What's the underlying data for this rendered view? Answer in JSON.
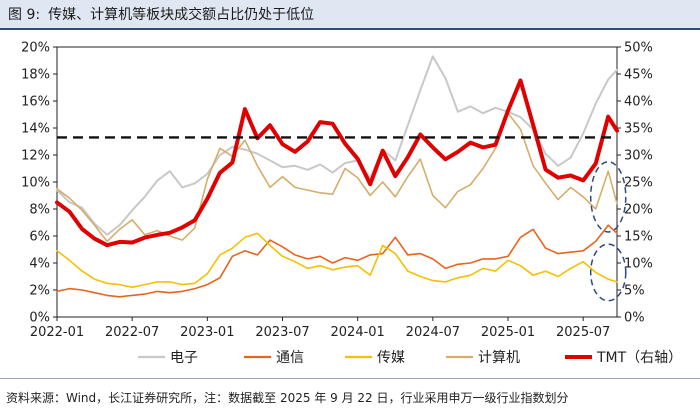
{
  "figure": {
    "label": "图 9:",
    "title": "传媒、计算机等板块成交额占比仍处于低位",
    "source": "资料来源：Wind，长江证券研究所，注：数据截至 2025 年 9 月 22 日，行业采用申万一级行业指数划分"
  },
  "chart_data": {
    "type": "line",
    "left_axis": {
      "min": 0,
      "max": 20,
      "step": 2,
      "ticks": [
        "0%",
        "2%",
        "4%",
        "6%",
        "8%",
        "10%",
        "12%",
        "14%",
        "16%",
        "18%",
        "20%"
      ]
    },
    "right_axis": {
      "min": 0,
      "max": 50,
      "step": 5,
      "ticks": [
        "0%",
        "5%",
        "10%",
        "15%",
        "20%",
        "25%",
        "30%",
        "35%",
        "40%",
        "45%",
        "50%"
      ]
    },
    "x_ticks": [
      "2022-01",
      "2022-07",
      "2023-01",
      "2023-07",
      "2024-01",
      "2024-07",
      "2025-01",
      "2025-07"
    ],
    "x_tick_months": [
      0,
      6,
      12,
      18,
      24,
      30,
      36,
      42
    ],
    "x_range_months": [
      0,
      44.7
    ],
    "reference_line": {
      "value_left_axis": 13.3,
      "style": "dashed"
    },
    "series": [
      {
        "name": "电子",
        "axis": "left",
        "color": "#c8c8c8",
        "width": 2,
        "points": [
          [
            0,
            9.4
          ],
          [
            1,
            8.5
          ],
          [
            2,
            8.1
          ],
          [
            3,
            6.9
          ],
          [
            4,
            6.1
          ],
          [
            5,
            6.8
          ],
          [
            6,
            7.9
          ],
          [
            7,
            8.9
          ],
          [
            8,
            10.1
          ],
          [
            9,
            10.8
          ],
          [
            10,
            9.6
          ],
          [
            11,
            9.9
          ],
          [
            12,
            10.6
          ],
          [
            13,
            12.0
          ],
          [
            14,
            12.6
          ],
          [
            15,
            12.4
          ],
          [
            16,
            12.1
          ],
          [
            17,
            11.6
          ],
          [
            18,
            11.1
          ],
          [
            19,
            11.2
          ],
          [
            20,
            10.9
          ],
          [
            21,
            11.3
          ],
          [
            22,
            10.7
          ],
          [
            23,
            11.4
          ],
          [
            24,
            11.6
          ],
          [
            25,
            10.3
          ],
          [
            26,
            12.4
          ],
          [
            27,
            11.6
          ],
          [
            28,
            14.2
          ],
          [
            29,
            16.8
          ],
          [
            30,
            19.3
          ],
          [
            31,
            17.7
          ],
          [
            32,
            15.2
          ],
          [
            33,
            15.6
          ],
          [
            34,
            15.1
          ],
          [
            35,
            15.5
          ],
          [
            36,
            15.2
          ],
          [
            37,
            14.8
          ],
          [
            38,
            13.9
          ],
          [
            39,
            12.1
          ],
          [
            40,
            11.2
          ],
          [
            41,
            11.8
          ],
          [
            42,
            13.6
          ],
          [
            43,
            15.8
          ],
          [
            44,
            17.6
          ],
          [
            44.7,
            18.3
          ]
        ]
      },
      {
        "name": "通信",
        "axis": "left",
        "color": "#e8641e",
        "width": 1.6,
        "points": [
          [
            0,
            1.9
          ],
          [
            1,
            2.1
          ],
          [
            2,
            2.0
          ],
          [
            3,
            1.8
          ],
          [
            4,
            1.6
          ],
          [
            5,
            1.5
          ],
          [
            6,
            1.6
          ],
          [
            7,
            1.7
          ],
          [
            8,
            1.9
          ],
          [
            9,
            1.8
          ],
          [
            10,
            1.9
          ],
          [
            11,
            2.1
          ],
          [
            12,
            2.4
          ],
          [
            13,
            2.9
          ],
          [
            14,
            4.5
          ],
          [
            15,
            4.9
          ],
          [
            16,
            4.6
          ],
          [
            17,
            5.7
          ],
          [
            18,
            5.2
          ],
          [
            19,
            4.6
          ],
          [
            20,
            4.3
          ],
          [
            21,
            4.5
          ],
          [
            22,
            4.0
          ],
          [
            23,
            4.4
          ],
          [
            24,
            4.2
          ],
          [
            25,
            4.6
          ],
          [
            26,
            4.7
          ],
          [
            27,
            5.9
          ],
          [
            28,
            4.6
          ],
          [
            29,
            4.7
          ],
          [
            30,
            4.3
          ],
          [
            31,
            3.6
          ],
          [
            32,
            3.9
          ],
          [
            33,
            4.0
          ],
          [
            34,
            4.3
          ],
          [
            35,
            4.3
          ],
          [
            36,
            4.5
          ],
          [
            37,
            5.9
          ],
          [
            38,
            6.5
          ],
          [
            39,
            5.1
          ],
          [
            40,
            4.7
          ],
          [
            41,
            4.8
          ],
          [
            42,
            4.9
          ],
          [
            43,
            5.6
          ],
          [
            44,
            6.8
          ],
          [
            44.7,
            6.2
          ]
        ]
      },
      {
        "name": "传媒",
        "axis": "left",
        "color": "#f5c000",
        "width": 1.6,
        "points": [
          [
            0,
            4.9
          ],
          [
            1,
            4.2
          ],
          [
            2,
            3.4
          ],
          [
            3,
            2.8
          ],
          [
            4,
            2.5
          ],
          [
            5,
            2.4
          ],
          [
            6,
            2.2
          ],
          [
            7,
            2.4
          ],
          [
            8,
            2.6
          ],
          [
            9,
            2.6
          ],
          [
            10,
            2.4
          ],
          [
            11,
            2.5
          ],
          [
            12,
            3.2
          ],
          [
            13,
            4.6
          ],
          [
            14,
            5.1
          ],
          [
            15,
            5.9
          ],
          [
            16,
            6.2
          ],
          [
            17,
            5.3
          ],
          [
            18,
            4.5
          ],
          [
            19,
            4.1
          ],
          [
            20,
            3.6
          ],
          [
            21,
            3.8
          ],
          [
            22,
            3.5
          ],
          [
            23,
            3.7
          ],
          [
            24,
            3.8
          ],
          [
            25,
            3.1
          ],
          [
            26,
            5.3
          ],
          [
            27,
            4.7
          ],
          [
            28,
            3.4
          ],
          [
            29,
            3.0
          ],
          [
            30,
            2.7
          ],
          [
            31,
            2.6
          ],
          [
            32,
            2.9
          ],
          [
            33,
            3.1
          ],
          [
            34,
            3.6
          ],
          [
            35,
            3.4
          ],
          [
            36,
            4.2
          ],
          [
            37,
            3.8
          ],
          [
            38,
            3.1
          ],
          [
            39,
            3.4
          ],
          [
            40,
            3.0
          ],
          [
            41,
            3.6
          ],
          [
            42,
            4.1
          ],
          [
            43,
            3.3
          ],
          [
            44,
            2.8
          ],
          [
            44.7,
            2.6
          ]
        ]
      },
      {
        "name": "计算机",
        "axis": "left",
        "color": "#d6ad6a",
        "width": 1.6,
        "points": [
          [
            0,
            9.5
          ],
          [
            1,
            8.8
          ],
          [
            2,
            7.9
          ],
          [
            3,
            6.8
          ],
          [
            4,
            5.6
          ],
          [
            5,
            6.5
          ],
          [
            6,
            7.2
          ],
          [
            7,
            6.1
          ],
          [
            8,
            6.4
          ],
          [
            9,
            6.0
          ],
          [
            10,
            5.7
          ],
          [
            11,
            6.6
          ],
          [
            12,
            10.2
          ],
          [
            13,
            12.5
          ],
          [
            14,
            11.9
          ],
          [
            15,
            13.1
          ],
          [
            16,
            11.2
          ],
          [
            17,
            9.6
          ],
          [
            18,
            10.4
          ],
          [
            19,
            9.6
          ],
          [
            20,
            9.4
          ],
          [
            21,
            9.2
          ],
          [
            22,
            9.1
          ],
          [
            23,
            11.0
          ],
          [
            24,
            10.3
          ],
          [
            25,
            9.0
          ],
          [
            26,
            10.0
          ],
          [
            27,
            8.9
          ],
          [
            28,
            10.4
          ],
          [
            29,
            11.7
          ],
          [
            30,
            9.0
          ],
          [
            31,
            8.1
          ],
          [
            32,
            9.3
          ],
          [
            33,
            9.8
          ],
          [
            34,
            11.0
          ],
          [
            35,
            12.5
          ],
          [
            36,
            15.1
          ],
          [
            37,
            13.9
          ],
          [
            38,
            11.2
          ],
          [
            39,
            9.9
          ],
          [
            40,
            8.7
          ],
          [
            41,
            9.6
          ],
          [
            42,
            8.9
          ],
          [
            43,
            8.0
          ],
          [
            44,
            10.8
          ],
          [
            44.7,
            8.4
          ]
        ]
      },
      {
        "name": "TMT（右轴）",
        "axis": "right",
        "color": "#e00000",
        "width": 4,
        "points": [
          [
            0,
            21.2
          ],
          [
            1,
            19.5
          ],
          [
            2,
            16.3
          ],
          [
            3,
            14.5
          ],
          [
            4,
            13.3
          ],
          [
            5,
            13.9
          ],
          [
            6,
            13.8
          ],
          [
            7,
            14.7
          ],
          [
            8,
            15.2
          ],
          [
            9,
            15.6
          ],
          [
            10,
            16.6
          ],
          [
            11,
            17.9
          ],
          [
            12,
            21.9
          ],
          [
            13,
            26.7
          ],
          [
            14,
            28.6
          ],
          [
            15,
            38.5
          ],
          [
            16,
            33.1
          ],
          [
            17,
            35.5
          ],
          [
            18,
            32.0
          ],
          [
            19,
            30.6
          ],
          [
            20,
            32.5
          ],
          [
            21,
            36.1
          ],
          [
            22,
            35.8
          ],
          [
            23,
            32.1
          ],
          [
            24,
            29.3
          ],
          [
            25,
            24.6
          ],
          [
            26,
            30.8
          ],
          [
            27,
            26.1
          ],
          [
            28,
            29.6
          ],
          [
            29,
            33.8
          ],
          [
            30,
            31.4
          ],
          [
            31,
            29.2
          ],
          [
            32,
            30.6
          ],
          [
            33,
            32.3
          ],
          [
            34,
            31.4
          ],
          [
            35,
            31.9
          ],
          [
            36,
            38.2
          ],
          [
            37,
            43.8
          ],
          [
            38,
            35.6
          ],
          [
            39,
            27.3
          ],
          [
            40,
            25.8
          ],
          [
            41,
            26.2
          ],
          [
            42,
            25.3
          ],
          [
            43,
            28.4
          ],
          [
            44,
            37.1
          ],
          [
            44.7,
            34.5
          ]
        ]
      }
    ],
    "highlight_ellipses": [
      {
        "series_hint": "计算机",
        "center_month": 44.0,
        "center_left": 8.9,
        "rx_months": 1.4,
        "ry_left": 2.6
      },
      {
        "series_hint": "传媒",
        "center_month": 44.0,
        "center_left": 3.3,
        "rx_months": 1.4,
        "ry_left": 2.1
      }
    ],
    "legend": {
      "placement": "bottom"
    }
  },
  "colors": {
    "title_bar_bg": "#dfe7f3",
    "title_rule": "#2f4a7a",
    "ellipse": "#2f4a7a"
  }
}
